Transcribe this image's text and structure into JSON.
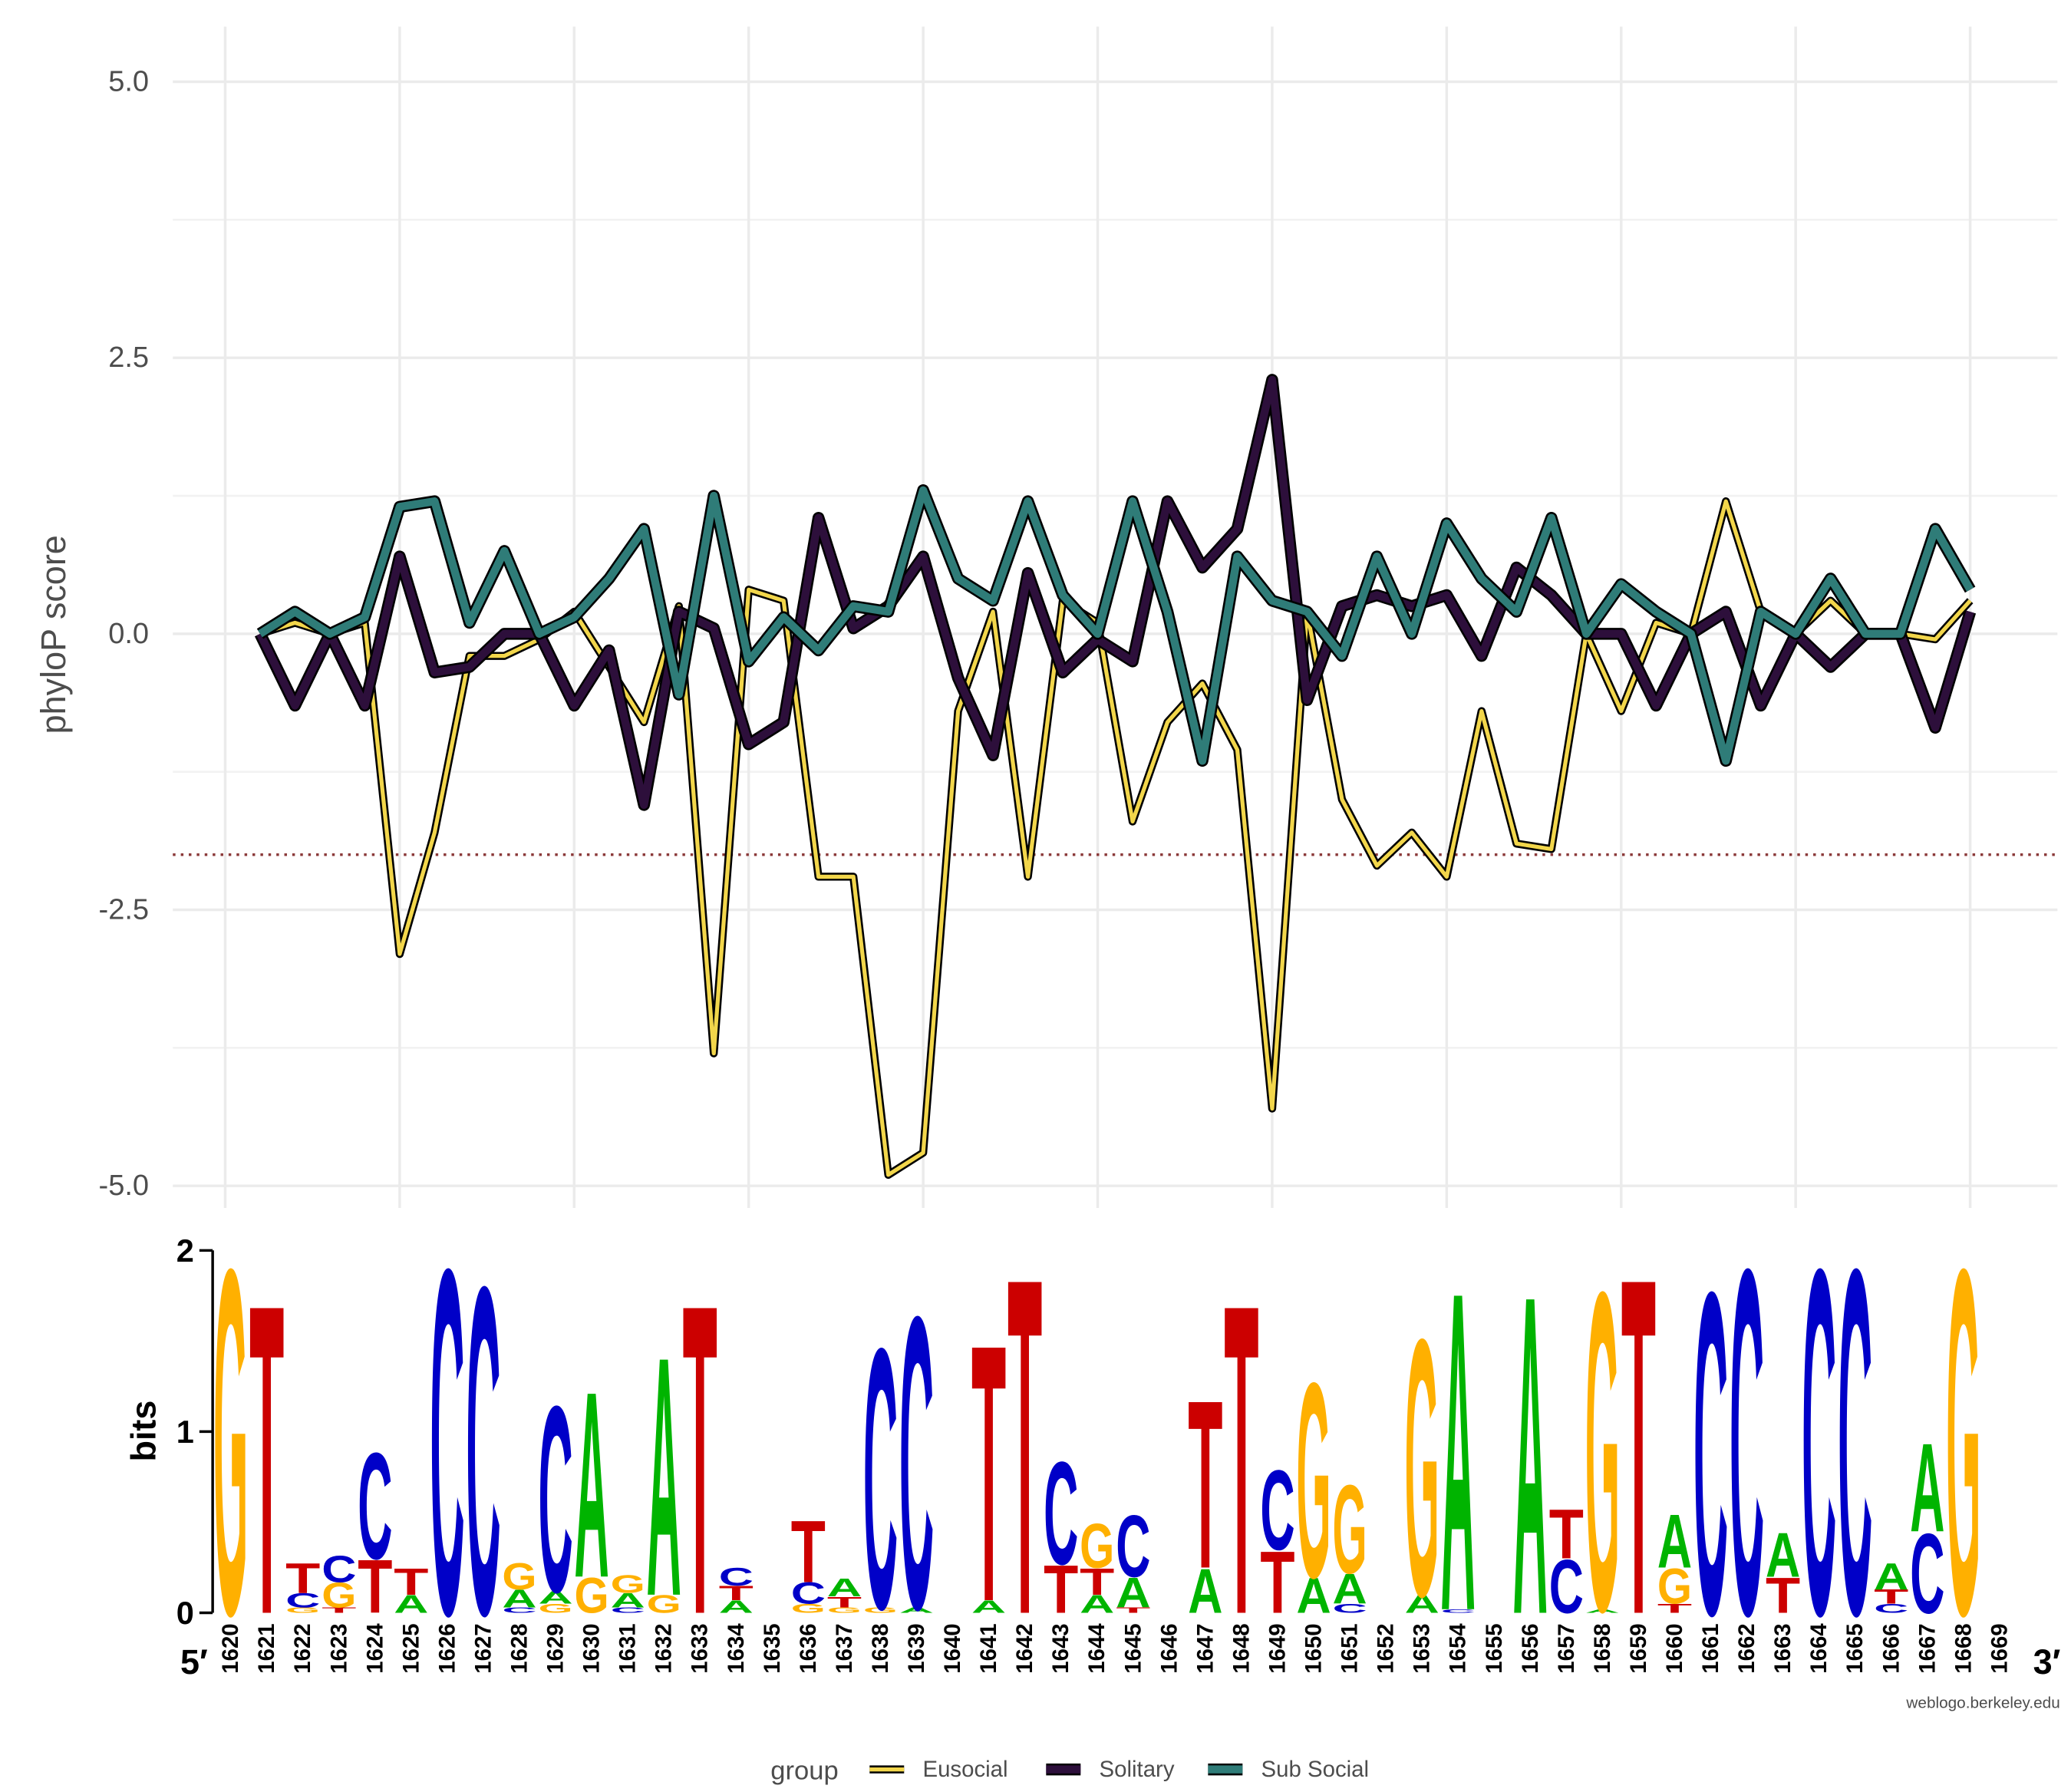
{
  "chart_data": [
    {
      "type": "line",
      "y_label": "phyloP score",
      "x": [
        1,
        2,
        3,
        4,
        5,
        6,
        7,
        8,
        9,
        10,
        11,
        12,
        13,
        14,
        15,
        16,
        17,
        18,
        19,
        20,
        21,
        22,
        23,
        24,
        25,
        26,
        27,
        28,
        29,
        30,
        31,
        32,
        33,
        34,
        35,
        36,
        37,
        38,
        39,
        40,
        41,
        42,
        43,
        44,
        45,
        46,
        47,
        48,
        49,
        50
      ],
      "series": [
        {
          "name": "Eusocial",
          "color": "#f2d64b",
          "width": 3,
          "values": [
            0.0,
            0.1,
            0.0,
            0.1,
            -2.9,
            -1.8,
            -0.2,
            -0.2,
            -0.05,
            0.2,
            -0.3,
            -0.8,
            0.25,
            -3.8,
            0.4,
            0.3,
            -2.2,
            -2.2,
            -4.9,
            -4.7,
            -0.7,
            0.2,
            -2.2,
            0.3,
            0.1,
            -1.7,
            -0.8,
            -0.45,
            -1.05,
            -4.3,
            0.2,
            -1.5,
            -2.1,
            -1.8,
            -2.2,
            -0.7,
            -1.9,
            -1.95,
            0.0,
            -0.7,
            0.1,
            0.0,
            1.2,
            0.2,
            0.0,
            0.3,
            0.0,
            0.0,
            -0.05,
            0.3
          ]
        },
        {
          "name": "Solitary",
          "color": "#2d0f3b",
          "width": 6,
          "values": [
            0.0,
            -0.65,
            0.0,
            -0.65,
            0.7,
            -0.35,
            -0.3,
            0.0,
            0.0,
            -0.65,
            -0.15,
            -1.55,
            0.2,
            0.05,
            -1.0,
            -0.8,
            1.05,
            0.05,
            0.25,
            0.7,
            -0.4,
            -1.1,
            0.55,
            -0.35,
            -0.05,
            -0.25,
            1.2,
            0.6,
            0.95,
            2.3,
            -0.6,
            0.25,
            0.35,
            0.25,
            0.35,
            -0.2,
            0.6,
            0.35,
            0.0,
            0.0,
            -0.65,
            0.0,
            0.2,
            -0.65,
            0.0,
            -0.3,
            0.0,
            0.0,
            -0.85,
            0.2
          ]
        },
        {
          "name": "Sub Social",
          "color": "#2f7c78",
          "width": 6,
          "values": [
            0.0,
            0.2,
            0.0,
            0.15,
            1.15,
            1.2,
            0.1,
            0.75,
            0.0,
            0.15,
            0.5,
            0.95,
            -0.55,
            1.25,
            -0.25,
            0.15,
            -0.15,
            0.25,
            0.2,
            1.3,
            0.5,
            0.3,
            1.2,
            0.35,
            0.0,
            1.2,
            0.2,
            -1.15,
            0.7,
            0.3,
            0.2,
            -0.2,
            0.7,
            0.0,
            1.0,
            0.5,
            0.2,
            1.05,
            0.0,
            0.45,
            0.2,
            0.0,
            -1.15,
            0.2,
            0.0,
            0.5,
            0.0,
            0.0,
            0.95,
            0.4
          ]
        }
      ],
      "xlim": [
        -1.5,
        52.5
      ],
      "ylim": [
        -5.2,
        5.5
      ],
      "yticks": [
        {
          "value": 5,
          "label": "5.0"
        },
        {
          "value": 2.5,
          "label": "2.5"
        },
        {
          "value": 0,
          "label": "0.0"
        },
        {
          "value": -2.5,
          "label": "-2.5"
        },
        {
          "value": -5,
          "label": "-5.0"
        }
      ],
      "yminor": [
        3.75,
        1.25,
        -1.25,
        -3.75
      ],
      "xgrid": [
        0,
        5,
        10,
        15,
        20,
        25,
        30,
        35,
        40,
        45,
        50
      ],
      "hline": -2,
      "hline_color": "#8b3a3a",
      "grid": true,
      "legend_title": "group",
      "legend": "bottom"
    },
    {
      "type": "logo",
      "y_label": "bits",
      "ylim": [
        0,
        2
      ],
      "yticks": [
        0,
        1,
        2
      ],
      "five_prime": "5′",
      "three_prime": "3′",
      "credit": "weblogo.berkeley.edu",
      "letter_colors": {
        "A": "#00b400",
        "C": "#0000c8",
        "G": "#ffb000",
        "T": "#cc0000"
      },
      "categories": [
        1620,
        1621,
        1622,
        1623,
        1624,
        1625,
        1626,
        1627,
        1628,
        1629,
        1630,
        1631,
        1632,
        1633,
        1634,
        1635,
        1636,
        1637,
        1638,
        1639,
        1640,
        1641,
        1642,
        1643,
        1644,
        1645,
        1646,
        1647,
        1648,
        1649,
        1650,
        1651,
        1652,
        1653,
        1654,
        1655,
        1656,
        1657,
        1658,
        1659,
        1660,
        1661,
        1662,
        1663,
        1664,
        1665,
        1666,
        1667,
        1668,
        1669
      ],
      "stacks": [
        [
          {
            "letter": "G",
            "bits": 1.95
          }
        ],
        [
          {
            "letter": "T",
            "bits": 1.75
          }
        ],
        [
          {
            "letter": "G",
            "bits": 0.03
          },
          {
            "letter": "C",
            "bits": 0.08
          },
          {
            "letter": "T",
            "bits": 0.17
          }
        ],
        [
          {
            "letter": "T",
            "bits": 0.03
          },
          {
            "letter": "G",
            "bits": 0.14
          },
          {
            "letter": "C",
            "bits": 0.15
          }
        ],
        [
          {
            "letter": "T",
            "bits": 0.3
          },
          {
            "letter": "C",
            "bits": 0.6
          }
        ],
        [
          {
            "letter": "A",
            "bits": 0.1
          },
          {
            "letter": "T",
            "bits": 0.15
          }
        ],
        [
          {
            "letter": "C",
            "bits": 1.95
          }
        ],
        [
          {
            "letter": "C",
            "bits": 1.85
          }
        ],
        [
          {
            "letter": "C",
            "bits": 0.03
          },
          {
            "letter": "A",
            "bits": 0.1
          },
          {
            "letter": "G",
            "bits": 0.15
          }
        ],
        [
          {
            "letter": "G",
            "bits": 0.05
          },
          {
            "letter": "A",
            "bits": 0.07
          },
          {
            "letter": "C",
            "bits": 1.05
          }
        ],
        [
          {
            "letter": "G",
            "bits": 0.2
          },
          {
            "letter": "A",
            "bits": 1.05
          }
        ],
        [
          {
            "letter": "C",
            "bits": 0.03
          },
          {
            "letter": "A",
            "bits": 0.08
          },
          {
            "letter": "G",
            "bits": 0.1
          }
        ],
        [
          {
            "letter": "G",
            "bits": 0.1
          },
          {
            "letter": "A",
            "bits": 1.35
          }
        ],
        [
          {
            "letter": "T",
            "bits": 1.75
          }
        ],
        [
          {
            "letter": "A",
            "bits": 0.07
          },
          {
            "letter": "T",
            "bits": 0.08
          },
          {
            "letter": "C",
            "bits": 0.1
          }
        ],
        [],
        [
          {
            "letter": "G",
            "bits": 0.05
          },
          {
            "letter": "C",
            "bits": 0.12
          },
          {
            "letter": "T",
            "bits": 0.35
          }
        ],
        [
          {
            "letter": "G",
            "bits": 0.03
          },
          {
            "letter": "T",
            "bits": 0.06
          },
          {
            "letter": "A",
            "bits": 0.1
          }
        ],
        [
          {
            "letter": "G",
            "bits": 0.03
          },
          {
            "letter": "C",
            "bits": 1.47
          }
        ],
        [
          {
            "letter": "A",
            "bits": 0.03
          },
          {
            "letter": "C",
            "bits": 1.65
          }
        ],
        [],
        [
          {
            "letter": "A",
            "bits": 0.07
          },
          {
            "letter": "T",
            "bits": 1.45
          }
        ],
        [
          {
            "letter": "T",
            "bits": 1.9
          }
        ],
        [
          {
            "letter": "T",
            "bits": 0.27
          },
          {
            "letter": "C",
            "bits": 0.58
          }
        ],
        [
          {
            "letter": "A",
            "bits": 0.1
          },
          {
            "letter": "T",
            "bits": 0.15
          },
          {
            "letter": "G",
            "bits": 0.25
          }
        ],
        [
          {
            "letter": "T",
            "bits": 0.03
          },
          {
            "letter": "A",
            "bits": 0.17
          },
          {
            "letter": "C",
            "bits": 0.35
          }
        ],
        [],
        [
          {
            "letter": "A",
            "bits": 0.25
          },
          {
            "letter": "T",
            "bits": 0.95
          }
        ],
        [
          {
            "letter": "T",
            "bits": 1.75
          }
        ],
        [
          {
            "letter": "T",
            "bits": 0.35
          },
          {
            "letter": "C",
            "bits": 0.45
          }
        ],
        [
          {
            "letter": "A",
            "bits": 0.2
          },
          {
            "letter": "G",
            "bits": 1.1
          }
        ],
        [
          {
            "letter": "C",
            "bits": 0.05
          },
          {
            "letter": "A",
            "bits": 0.17
          },
          {
            "letter": "G",
            "bits": 0.5
          }
        ],
        [],
        [
          {
            "letter": "A",
            "bits": 0.1
          },
          {
            "letter": "G",
            "bits": 1.45
          }
        ],
        [
          {
            "letter": "C",
            "bits": 0.02
          },
          {
            "letter": "A",
            "bits": 1.8
          }
        ],
        [],
        [
          {
            "letter": "A",
            "bits": 1.8
          }
        ],
        [
          {
            "letter": "C",
            "bits": 0.3
          },
          {
            "letter": "T",
            "bits": 0.28
          }
        ],
        [
          {
            "letter": "A",
            "bits": 0.02
          },
          {
            "letter": "G",
            "bits": 1.8
          }
        ],
        [
          {
            "letter": "T",
            "bits": 1.9
          }
        ],
        [
          {
            "letter": "T",
            "bits": 0.05
          },
          {
            "letter": "G",
            "bits": 0.2
          },
          {
            "letter": "A",
            "bits": 0.3
          }
        ],
        [
          {
            "letter": "C",
            "bits": 1.82
          }
        ],
        [
          {
            "letter": "C",
            "bits": 1.95
          }
        ],
        [
          {
            "letter": "T",
            "bits": 0.2
          },
          {
            "letter": "A",
            "bits": 0.25
          }
        ],
        [
          {
            "letter": "C",
            "bits": 1.95
          }
        ],
        [
          {
            "letter": "C",
            "bits": 1.95
          }
        ],
        [
          {
            "letter": "C",
            "bits": 0.05
          },
          {
            "letter": "T",
            "bits": 0.08
          },
          {
            "letter": "A",
            "bits": 0.15
          }
        ],
        [
          {
            "letter": "C",
            "bits": 0.45
          },
          {
            "letter": "A",
            "bits": 0.5
          }
        ],
        [
          {
            "letter": "G",
            "bits": 1.95
          }
        ],
        []
      ]
    }
  ]
}
